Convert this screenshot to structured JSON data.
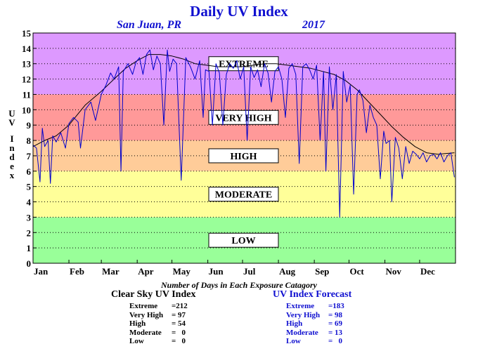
{
  "chart_data": {
    "type": "line",
    "title": "Daily UV Index",
    "subtitle_location": "San Juan, PR",
    "subtitle_year": "2017",
    "ylabel": "UV Index",
    "ylim": [
      0,
      15
    ],
    "yticks": [
      "0",
      "1",
      "2",
      "3",
      "4",
      "5",
      "6",
      "7",
      "8",
      "9",
      "10",
      "11",
      "12",
      "13",
      "14",
      "15"
    ],
    "xlim": [
      0,
      365
    ],
    "months": [
      {
        "label": "Jan",
        "day": 0
      },
      {
        "label": "Feb",
        "day": 31
      },
      {
        "label": "Mar",
        "day": 59
      },
      {
        "label": "Apr",
        "day": 90
      },
      {
        "label": "May",
        "day": 120
      },
      {
        "label": "Jun",
        "day": 151
      },
      {
        "label": "Jul",
        "day": 181
      },
      {
        "label": "Aug",
        "day": 212
      },
      {
        "label": "Sep",
        "day": 243
      },
      {
        "label": "Oct",
        "day": 273
      },
      {
        "label": "Nov",
        "day": 304
      },
      {
        "label": "Dec",
        "day": 334
      }
    ],
    "grid": "dotted horizontal",
    "bands": [
      {
        "label": "LOW",
        "from": 0,
        "to": 3,
        "color": "#99ff99"
      },
      {
        "label": "MODERATE",
        "from": 3,
        "to": 6,
        "color": "#ffff99"
      },
      {
        "label": "HIGH",
        "from": 6,
        "to": 8,
        "color": "#ffcc99"
      },
      {
        "label": "VERY HIGH",
        "from": 8,
        "to": 11,
        "color": "#ff9999"
      },
      {
        "label": "EXTREME",
        "from": 11,
        "to": 15,
        "color": "#dd99ff"
      }
    ],
    "series": [
      {
        "name": "Clear Sky UV Index",
        "color": "#000000",
        "x": [
          0,
          10,
          20,
          31,
          45,
          59,
          70,
          80,
          90,
          100,
          110,
          120,
          130,
          140,
          150,
          160,
          170,
          180,
          190,
          200,
          210,
          220,
          230,
          240,
          250,
          260,
          270,
          280,
          290,
          300,
          310,
          320,
          330,
          340,
          350,
          364
        ],
        "y": [
          7.6,
          8.0,
          8.3,
          9.0,
          10.3,
          11.2,
          12.0,
          12.7,
          13.2,
          13.6,
          13.6,
          13.5,
          13.3,
          13.0,
          12.9,
          12.8,
          12.8,
          12.8,
          12.9,
          13.0,
          13.0,
          12.9,
          12.8,
          12.7,
          12.5,
          12.3,
          11.9,
          11.3,
          10.5,
          9.7,
          8.9,
          8.2,
          7.6,
          7.2,
          7.1,
          7.2
        ]
      },
      {
        "name": "UV Index Forecast",
        "color": "#0000cc",
        "x": [
          0,
          3,
          6,
          8,
          10,
          13,
          15,
          17,
          20,
          24,
          28,
          31,
          35,
          39,
          41,
          45,
          50,
          54,
          59,
          63,
          67,
          70,
          74,
          76,
          78,
          82,
          86,
          89,
          92,
          95,
          98,
          101,
          104,
          107,
          110,
          113,
          116,
          118,
          121,
          124,
          128,
          132,
          136,
          140,
          144,
          147,
          149,
          152,
          155,
          158,
          161,
          164,
          167,
          170,
          173,
          176,
          179,
          182,
          185,
          188,
          191,
          194,
          197,
          200,
          203,
          206,
          209,
          212,
          215,
          218,
          221,
          224,
          227,
          230,
          233,
          236,
          239,
          242,
          245,
          248,
          251,
          253,
          256,
          259,
          262,
          265,
          268,
          271,
          274,
          277,
          280,
          282,
          285,
          288,
          291,
          294,
          297,
          300,
          303,
          305,
          308,
          310,
          313,
          316,
          319,
          322,
          325,
          328,
          331,
          334,
          337,
          340,
          343,
          346,
          349,
          352,
          355,
          358,
          361,
          364
        ],
        "y": [
          7.7,
          7.5,
          5.3,
          8.8,
          7.6,
          8.0,
          5.2,
          8.3,
          7.9,
          8.5,
          7.5,
          9.1,
          9.5,
          9.2,
          7.5,
          10.0,
          10.5,
          9.3,
          11.0,
          11.6,
          12.4,
          12.0,
          12.8,
          6.0,
          12.5,
          13.0,
          12.3,
          13.1,
          13.4,
          12.3,
          13.6,
          13.9,
          12.6,
          13.5,
          13.0,
          9.0,
          13.9,
          12.5,
          13.3,
          13.0,
          5.4,
          13.4,
          12.8,
          12.0,
          13.2,
          9.5,
          12.6,
          12.5,
          9.0,
          13.0,
          12.4,
          9.0,
          12.3,
          13.0,
          12.7,
          13.2,
          12.0,
          12.8,
          8.0,
          12.8,
          12.1,
          12.6,
          11.5,
          13.0,
          12.4,
          10.5,
          12.5,
          12.8,
          12.0,
          9.5,
          12.7,
          13.0,
          12.3,
          6.5,
          12.8,
          13.0,
          12.6,
          12.0,
          12.9,
          8.0,
          12.5,
          6.0,
          12.8,
          10.0,
          12.3,
          3.0,
          12.5,
          10.5,
          11.6,
          4.5,
          11.0,
          11.3,
          10.6,
          8.5,
          10.3,
          9.5,
          9.0,
          5.5,
          8.6,
          7.8,
          8.0,
          4.0,
          8.2,
          7.5,
          5.5,
          7.6,
          6.5,
          7.3,
          7.1,
          6.8,
          7.2,
          6.6,
          7.0,
          7.1,
          6.8,
          7.2,
          6.6,
          7.0,
          7.2,
          5.6
        ]
      }
    ],
    "caption": "Number of Days in Each Exposure Catagory",
    "stats": [
      {
        "title": "Clear Sky UV Index",
        "color": "#000000",
        "rows": [
          {
            "label": "Extreme",
            "value": "=212"
          },
          {
            "label": "Very High",
            "value": "= 97"
          },
          {
            "label": "High",
            "value": "= 54"
          },
          {
            "label": "Moderate",
            "value": "=   0"
          },
          {
            "label": "Low",
            "value": "=   0"
          }
        ]
      },
      {
        "title": "UV Index Forecast",
        "color": "#1010d0",
        "rows": [
          {
            "label": "Extreme",
            "value": "=183"
          },
          {
            "label": "Very High",
            "value": "= 98"
          },
          {
            "label": "High",
            "value": "= 69"
          },
          {
            "label": "Moderate",
            "value": "= 13"
          },
          {
            "label": "Low",
            "value": "=   0"
          }
        ]
      }
    ]
  }
}
